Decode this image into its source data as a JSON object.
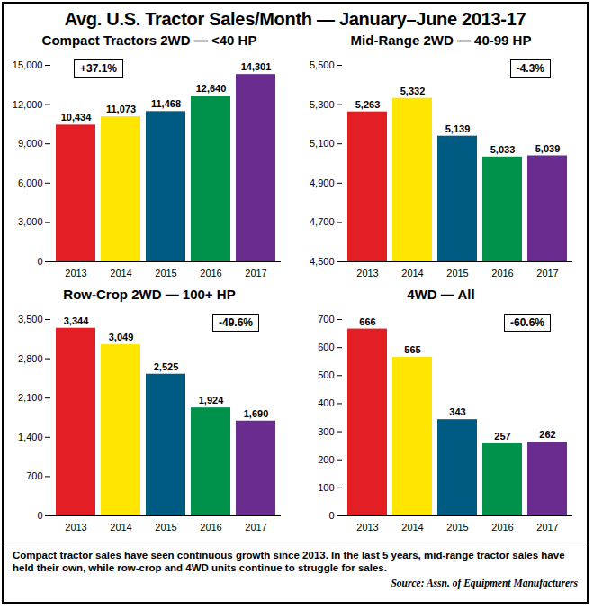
{
  "title": "Avg. U.S. Tractor Sales/Month — January–June 2013-17",
  "caption": "Compact tractor sales have seen continuous growth since 2013. In the last 5 years, mid-range tractor sales have held their own, while row-crop and 4WD units continue to struggle for sales.",
  "source": "Source: Assn. of Equipment Manufacturers",
  "chart_data": [
    {
      "type": "bar",
      "title": "Compact Tractors 2WD — <40 HP",
      "annotation": "+37.1%",
      "categories": [
        "2013",
        "2014",
        "2015",
        "2016",
        "2017"
      ],
      "values": [
        10434,
        11073,
        11468,
        12640,
        14301
      ],
      "value_labels": [
        "10,434",
        "11,073",
        "11,468",
        "12,640",
        "14,301"
      ],
      "colors": [
        "#e31e24",
        "#ffe600",
        "#005b82",
        "#00924a",
        "#6a2c8f"
      ],
      "ylim": [
        0,
        15000
      ],
      "yticks": [
        0,
        {
          "value": 3000,
          "label": "3,000"
        },
        {
          "value": 6000,
          "label": "6,000"
        },
        {
          "value": 9000,
          "label": "9,000"
        },
        {
          "value": 12000,
          "label": "12,000"
        },
        {
          "value": 15000,
          "label": "15,000"
        }
      ],
      "data_labels": true,
      "grid": false
    },
    {
      "type": "bar",
      "title": "Mid-Range 2WD — 40-99 HP",
      "annotation": "-4.3%",
      "categories": [
        "2013",
        "2014",
        "2015",
        "2016",
        "2017"
      ],
      "values": [
        5263,
        5332,
        5139,
        5033,
        5039
      ],
      "value_labels": [
        "5,263",
        "5,332",
        "5,139",
        "5,033",
        "5,039"
      ],
      "colors": [
        "#e31e24",
        "#ffe600",
        "#005b82",
        "#00924a",
        "#6a2c8f"
      ],
      "ylim": [
        4500,
        5500
      ],
      "yticks": [
        {
          "value": 4500,
          "label": "4,500"
        },
        {
          "value": 4700,
          "label": "4,700"
        },
        {
          "value": 4900,
          "label": "4,900"
        },
        {
          "value": 5100,
          "label": "5,100"
        },
        {
          "value": 5300,
          "label": "5,300"
        },
        {
          "value": 5500,
          "label": "5,500"
        }
      ],
      "data_labels": true,
      "grid": false
    },
    {
      "type": "bar",
      "title": "Row-Crop 2WD — 100+ HP",
      "annotation": "-49.6%",
      "categories": [
        "2013",
        "2014",
        "2015",
        "2016",
        "2017"
      ],
      "values": [
        3344,
        3049,
        2525,
        1924,
        1690
      ],
      "value_labels": [
        "3,344",
        "3,049",
        "2,525",
        "1,924",
        "1,690"
      ],
      "colors": [
        "#e31e24",
        "#ffe600",
        "#005b82",
        "#00924a",
        "#6a2c8f"
      ],
      "ylim": [
        0,
        3500
      ],
      "yticks": [
        0,
        700,
        {
          "value": 1400,
          "label": "1,400"
        },
        {
          "value": 2100,
          "label": "2,100"
        },
        {
          "value": 2800,
          "label": "2,800"
        },
        {
          "value": 3500,
          "label": "3,500"
        }
      ],
      "data_labels": true,
      "grid": false
    },
    {
      "type": "bar",
      "title": "4WD — All",
      "annotation": "-60.6%",
      "categories": [
        "2013",
        "2014",
        "2015",
        "2016",
        "2017"
      ],
      "values": [
        666,
        565,
        343,
        257,
        262
      ],
      "colors": [
        "#e31e24",
        "#ffe600",
        "#005b82",
        "#00924a",
        "#6a2c8f"
      ],
      "ylim": [
        0,
        700
      ],
      "yticks": [
        0,
        100,
        200,
        300,
        400,
        500,
        600,
        700
      ],
      "data_labels": true,
      "grid": false
    }
  ]
}
